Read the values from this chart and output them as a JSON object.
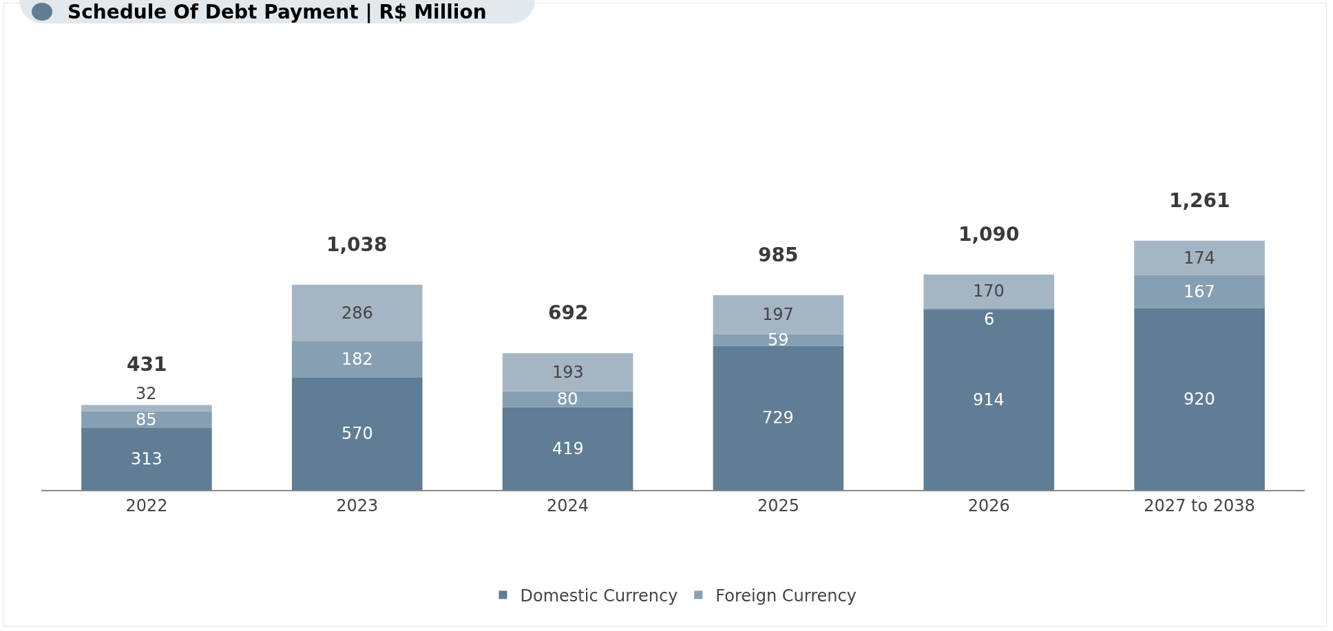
{
  "chart_data": {
    "type": "bar",
    "title": "Schedule Of Debt Payment | R$ Million",
    "stacked": true,
    "data_labels": true,
    "tick_labels": "x",
    "grid": false,
    "legend": "bottom",
    "categories": [
      "2022",
      "2023",
      "2024",
      "2025",
      "2026",
      "2027 to 2038"
    ],
    "series": [
      {
        "name": "Domestic Currency",
        "color": "#5f7d95",
        "values": [
          313,
          570,
          419,
          729,
          914,
          920
        ]
      },
      {
        "name": "Foreign Currency",
        "color": "#869fb3",
        "values": [
          85,
          182,
          80,
          59,
          6,
          167
        ]
      },
      {
        "color": "#a5b5c4",
        "values": [
          32,
          286,
          193,
          197,
          170,
          174
        ]
      }
    ],
    "totals": [
      "431",
      "1,038",
      "692",
      "985",
      "1,090",
      "1,261"
    ]
  }
}
